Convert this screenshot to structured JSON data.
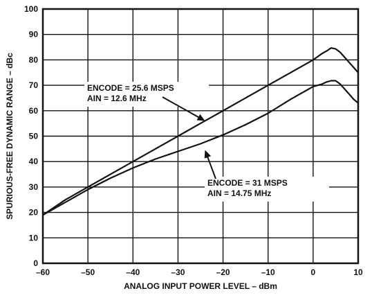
{
  "chart_data": {
    "type": "line",
    "title": "",
    "xlabel": "ANALOG INPUT POWER LEVEL – dBm",
    "ylabel": "SPURIOUS-FREE DYNAMIC RANGE – dBc",
    "xlim": [
      -60,
      10
    ],
    "ylim": [
      0,
      100
    ],
    "xticks": [
      -60,
      -50,
      -40,
      -30,
      -20,
      -10,
      0,
      10
    ],
    "yticks": [
      0,
      10,
      20,
      30,
      40,
      50,
      60,
      70,
      80,
      90,
      100
    ],
    "grid": true,
    "colors": {
      "line": "#111111",
      "grid": "#111111",
      "background": "#ffffff"
    },
    "series": [
      {
        "x": [
          -60,
          -55,
          -50,
          -45,
          -40,
          -35,
          -30,
          -25,
          -20,
          -15,
          -10,
          -5,
          0,
          2,
          3,
          4,
          5,
          6,
          7,
          8,
          9,
          10
        ],
        "y": [
          19,
          25,
          30,
          35,
          40,
          45,
          50,
          55,
          60,
          65,
          70,
          75,
          80,
          82.5,
          83.5,
          84.7,
          84.3,
          83,
          81,
          79,
          77,
          75
        ]
      },
      {
        "x": [
          -60,
          -55,
          -50,
          -45,
          -40,
          -35,
          -30,
          -25,
          -20,
          -15,
          -10,
          -5,
          0,
          2,
          3,
          4,
          5,
          6,
          7,
          8,
          9,
          10
        ],
        "y": [
          19,
          24,
          29,
          33.5,
          37.5,
          41,
          44,
          47,
          50.5,
          54.5,
          59,
          64.5,
          69.5,
          70.5,
          71.3,
          71.8,
          71.8,
          70.5,
          68.5,
          66.5,
          64.5,
          63
        ]
      }
    ],
    "annotations": [
      {
        "lines": [
          "ENCODE = 25.6 MSPS",
          "AIN = 12.6 MHz"
        ],
        "arrow_to": {
          "x": -24,
          "y": 56
        }
      },
      {
        "lines": [
          "ENCODE = 31 MSPS",
          "AIN = 14.75 MHz"
        ],
        "arrow_to": {
          "x": -24,
          "y": 44.5
        }
      }
    ]
  }
}
